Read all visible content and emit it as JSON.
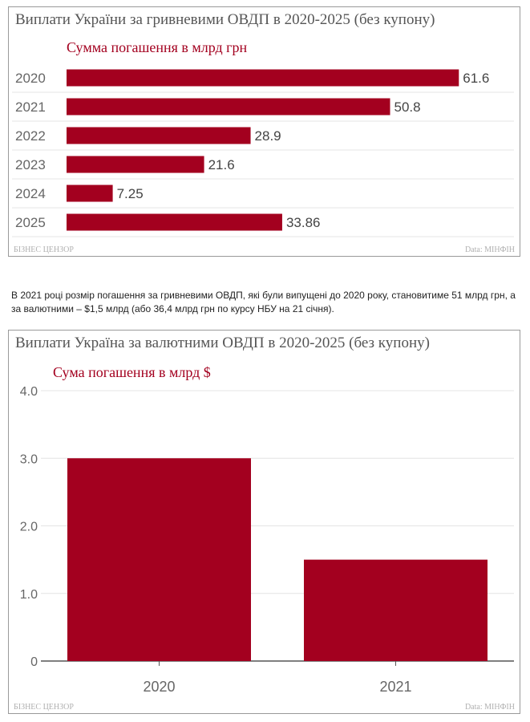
{
  "chart_data": [
    {
      "type": "bar",
      "orientation": "horizontal",
      "title": "Виплати України за гривневими ОВДП в 2020-2025 (без купону)",
      "subtitle": "Сумма погашення в млрд грн",
      "categories": [
        "2020",
        "2021",
        "2022",
        "2023",
        "2024",
        "2025"
      ],
      "values": [
        61.6,
        50.8,
        28.9,
        21.6,
        7.25,
        33.86
      ],
      "value_labels": [
        "61.6",
        "50.8",
        "28.9",
        "21.6",
        "7.25",
        "33.86"
      ],
      "xlim": [
        0,
        70
      ],
      "grid": true,
      "bar_color": "#a3001f",
      "source_left": "БІЗНЕС ЦЕНЗОР",
      "source_right": "Data: МІНФІН"
    },
    {
      "type": "bar",
      "orientation": "vertical",
      "title": "Виплати Україна за валютними ОВДП в 2020-2025 (без купону)",
      "subtitle": "Сума погашення в млрд $",
      "categories": [
        "2020",
        "2021"
      ],
      "values": [
        3.0,
        1.5
      ],
      "ylim": [
        0,
        4
      ],
      "yticks": [
        0,
        1,
        2,
        3,
        4
      ],
      "ytick_labels": [
        "0",
        "1.0",
        "2.0",
        "3.0",
        "4.0"
      ],
      "grid": true,
      "bar_color": "#a3001f",
      "source_left": "БІЗНЕС ЦЕНЗОР",
      "source_right": "Data: МІНФІН"
    }
  ],
  "note": "В 2021 році розмір погашення за гривневими ОВДП, які були випущені до 2020 року, становитиме 51 млрд грн, а за валютними – $1,5 млрд (або 36,4 млрд грн по курсу НБУ на 21 січня)."
}
